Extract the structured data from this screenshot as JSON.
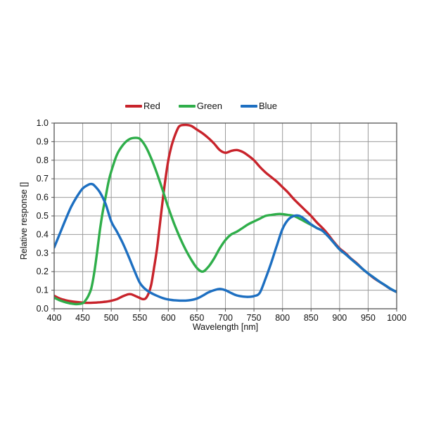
{
  "page": {
    "background": "#ffffff"
  },
  "chart_data": {
    "type": "line",
    "title": "",
    "xlabel": "Wavelength [nm]",
    "ylabel": "Relative response []",
    "xlim": [
      400,
      1000
    ],
    "ylim": [
      0.0,
      1.0
    ],
    "x_ticks": [
      400,
      450,
      500,
      550,
      600,
      650,
      700,
      750,
      800,
      850,
      900,
      950,
      1000
    ],
    "y_ticks": [
      0.0,
      0.1,
      0.2,
      0.3,
      0.4,
      0.5,
      0.6,
      0.7,
      0.8,
      0.9,
      1.0
    ],
    "grid": true,
    "legend_position": "top-center",
    "colors": {
      "grid": "#9b9b9b",
      "border": "#555555",
      "text": "#111111"
    },
    "series": [
      {
        "name": "Red",
        "color": "#c8232b",
        "points": [
          [
            400,
            0.07
          ],
          [
            410,
            0.055
          ],
          [
            420,
            0.046
          ],
          [
            430,
            0.04
          ],
          [
            440,
            0.036
          ],
          [
            450,
            0.033
          ],
          [
            460,
            0.032
          ],
          [
            470,
            0.033
          ],
          [
            480,
            0.035
          ],
          [
            490,
            0.038
          ],
          [
            500,
            0.043
          ],
          [
            510,
            0.052
          ],
          [
            520,
            0.067
          ],
          [
            530,
            0.078
          ],
          [
            535,
            0.078
          ],
          [
            540,
            0.072
          ],
          [
            550,
            0.058
          ],
          [
            555,
            0.052
          ],
          [
            560,
            0.055
          ],
          [
            565,
            0.08
          ],
          [
            570,
            0.13
          ],
          [
            575,
            0.22
          ],
          [
            580,
            0.32
          ],
          [
            585,
            0.45
          ],
          [
            590,
            0.58
          ],
          [
            595,
            0.7
          ],
          [
            600,
            0.8
          ],
          [
            605,
            0.87
          ],
          [
            610,
            0.92
          ],
          [
            615,
            0.96
          ],
          [
            620,
            0.985
          ],
          [
            630,
            0.99
          ],
          [
            640,
            0.985
          ],
          [
            650,
            0.965
          ],
          [
            660,
            0.945
          ],
          [
            670,
            0.92
          ],
          [
            680,
            0.89
          ],
          [
            690,
            0.855
          ],
          [
            700,
            0.84
          ],
          [
            710,
            0.85
          ],
          [
            720,
            0.855
          ],
          [
            730,
            0.845
          ],
          [
            740,
            0.825
          ],
          [
            750,
            0.8
          ],
          [
            760,
            0.765
          ],
          [
            770,
            0.735
          ],
          [
            780,
            0.71
          ],
          [
            790,
            0.685
          ],
          [
            800,
            0.655
          ],
          [
            810,
            0.625
          ],
          [
            820,
            0.59
          ],
          [
            830,
            0.56
          ],
          [
            840,
            0.53
          ],
          [
            850,
            0.5
          ],
          [
            860,
            0.465
          ],
          [
            870,
            0.435
          ],
          [
            880,
            0.4
          ],
          [
            890,
            0.36
          ],
          [
            900,
            0.325
          ],
          [
            910,
            0.3
          ],
          [
            920,
            0.27
          ],
          [
            930,
            0.245
          ],
          [
            940,
            0.215
          ],
          [
            950,
            0.19
          ],
          [
            960,
            0.165
          ],
          [
            970,
            0.145
          ],
          [
            980,
            0.125
          ],
          [
            990,
            0.105
          ],
          [
            1000,
            0.09
          ]
        ]
      },
      {
        "name": "Green",
        "color": "#2fae4a",
        "points": [
          [
            400,
            0.06
          ],
          [
            410,
            0.045
          ],
          [
            420,
            0.035
          ],
          [
            430,
            0.028
          ],
          [
            440,
            0.025
          ],
          [
            450,
            0.03
          ],
          [
            455,
            0.045
          ],
          [
            460,
            0.07
          ],
          [
            465,
            0.11
          ],
          [
            470,
            0.19
          ],
          [
            475,
            0.3
          ],
          [
            480,
            0.42
          ],
          [
            485,
            0.52
          ],
          [
            490,
            0.6
          ],
          [
            495,
            0.68
          ],
          [
            500,
            0.74
          ],
          [
            510,
            0.83
          ],
          [
            520,
            0.88
          ],
          [
            530,
            0.91
          ],
          [
            540,
            0.92
          ],
          [
            550,
            0.915
          ],
          [
            560,
            0.875
          ],
          [
            570,
            0.81
          ],
          [
            580,
            0.73
          ],
          [
            590,
            0.64
          ],
          [
            600,
            0.545
          ],
          [
            610,
            0.46
          ],
          [
            620,
            0.385
          ],
          [
            630,
            0.32
          ],
          [
            640,
            0.265
          ],
          [
            650,
            0.22
          ],
          [
            660,
            0.2
          ],
          [
            670,
            0.225
          ],
          [
            680,
            0.27
          ],
          [
            690,
            0.325
          ],
          [
            700,
            0.37
          ],
          [
            710,
            0.4
          ],
          [
            720,
            0.415
          ],
          [
            730,
            0.435
          ],
          [
            740,
            0.455
          ],
          [
            750,
            0.47
          ],
          [
            760,
            0.485
          ],
          [
            770,
            0.5
          ],
          [
            780,
            0.505
          ],
          [
            790,
            0.51
          ],
          [
            800,
            0.51
          ],
          [
            810,
            0.505
          ],
          [
            820,
            0.5
          ],
          [
            830,
            0.485
          ],
          [
            840,
            0.468
          ],
          [
            850,
            0.452
          ],
          [
            860,
            0.435
          ],
          [
            870,
            0.42
          ],
          [
            880,
            0.39
          ],
          [
            890,
            0.355
          ],
          [
            900,
            0.32
          ],
          [
            910,
            0.295
          ],
          [
            920,
            0.268
          ],
          [
            930,
            0.242
          ],
          [
            940,
            0.215
          ],
          [
            950,
            0.19
          ],
          [
            960,
            0.168
          ],
          [
            970,
            0.146
          ],
          [
            980,
            0.126
          ],
          [
            990,
            0.106
          ],
          [
            1000,
            0.09
          ]
        ]
      },
      {
        "name": "Blue",
        "color": "#1d6fc1",
        "points": [
          [
            400,
            0.33
          ],
          [
            410,
            0.405
          ],
          [
            420,
            0.48
          ],
          [
            430,
            0.55
          ],
          [
            440,
            0.605
          ],
          [
            450,
            0.648
          ],
          [
            460,
            0.668
          ],
          [
            465,
            0.672
          ],
          [
            470,
            0.665
          ],
          [
            480,
            0.628
          ],
          [
            490,
            0.565
          ],
          [
            500,
            0.47
          ],
          [
            510,
            0.415
          ],
          [
            520,
            0.355
          ],
          [
            530,
            0.285
          ],
          [
            540,
            0.21
          ],
          [
            550,
            0.14
          ],
          [
            560,
            0.105
          ],
          [
            570,
            0.085
          ],
          [
            580,
            0.07
          ],
          [
            590,
            0.058
          ],
          [
            600,
            0.05
          ],
          [
            610,
            0.046
          ],
          [
            620,
            0.044
          ],
          [
            630,
            0.044
          ],
          [
            640,
            0.047
          ],
          [
            650,
            0.055
          ],
          [
            660,
            0.07
          ],
          [
            670,
            0.088
          ],
          [
            680,
            0.1
          ],
          [
            690,
            0.107
          ],
          [
            700,
            0.1
          ],
          [
            710,
            0.085
          ],
          [
            720,
            0.072
          ],
          [
            730,
            0.066
          ],
          [
            740,
            0.064
          ],
          [
            750,
            0.068
          ],
          [
            760,
            0.085
          ],
          [
            770,
            0.16
          ],
          [
            780,
            0.245
          ],
          [
            790,
            0.34
          ],
          [
            800,
            0.43
          ],
          [
            810,
            0.48
          ],
          [
            820,
            0.5
          ],
          [
            830,
            0.5
          ],
          [
            840,
            0.48
          ],
          [
            850,
            0.455
          ],
          [
            860,
            0.435
          ],
          [
            870,
            0.42
          ],
          [
            880,
            0.39
          ],
          [
            890,
            0.355
          ],
          [
            900,
            0.32
          ],
          [
            910,
            0.295
          ],
          [
            920,
            0.268
          ],
          [
            930,
            0.242
          ],
          [
            940,
            0.215
          ],
          [
            950,
            0.19
          ],
          [
            960,
            0.168
          ],
          [
            970,
            0.146
          ],
          [
            980,
            0.126
          ],
          [
            990,
            0.106
          ],
          [
            1000,
            0.09
          ]
        ]
      }
    ]
  }
}
